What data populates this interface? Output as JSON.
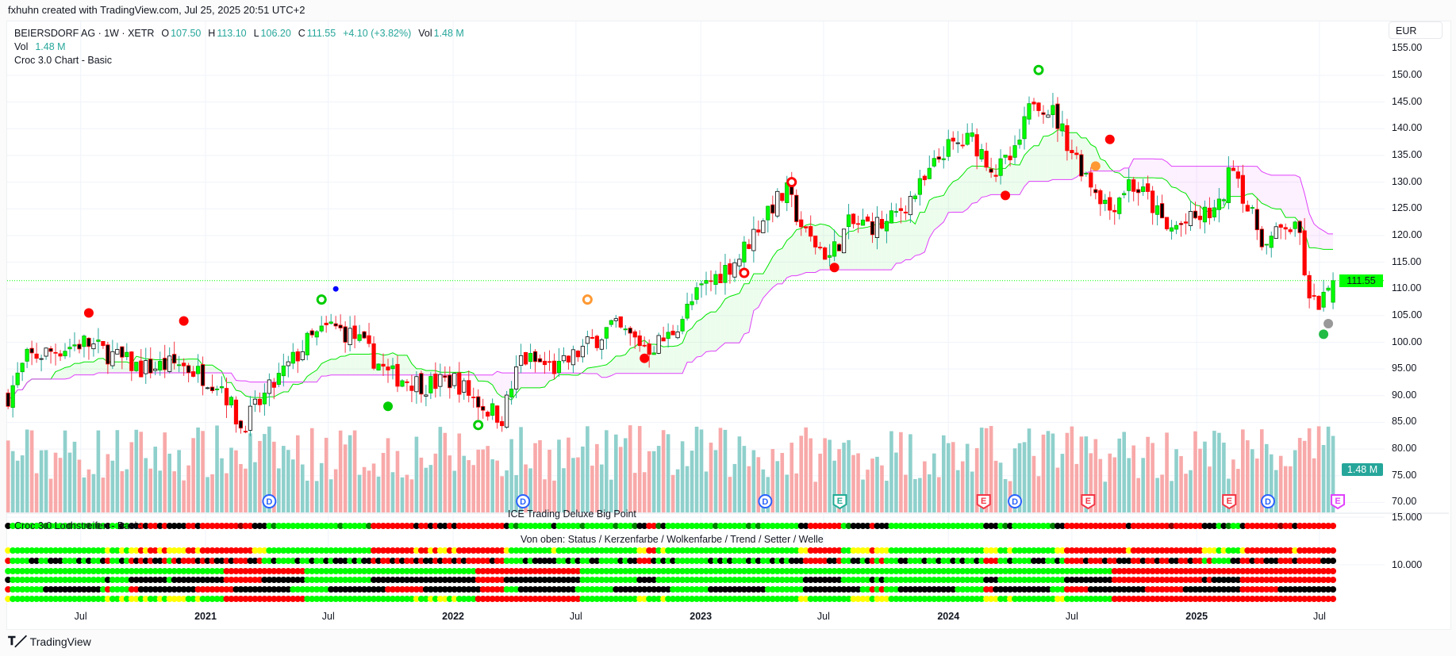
{
  "credit": "fxhuhn created with TradingView.com, Jul 25, 2025 20:51 UTC+2",
  "legend": {
    "symbol": "BEIERSDORF AG · 1W · XETR",
    "o_label": "O",
    "o": "107.50",
    "h_label": "H",
    "h": "113.10",
    "l_label": "L",
    "l": "106.20",
    "c_label": "C",
    "c": "111.55",
    "change": "+4.10 (+3.82%)",
    "vol_label": "Vol",
    "vol": "1.48 M",
    "vol_line_label": "Vol",
    "vol_line_value": "1.48 M",
    "indicator": "Croc 3.0 Chart - Basic"
  },
  "currency": "EUR",
  "last_price": "111.55",
  "last_volume": "1.48 M",
  "indicator_pane": {
    "label": "Croc 3.0 Lochstreifen - Basic",
    "title": "ICE Trading Deluxe Big Point",
    "subtitle": "Von oben: Status / Kerzenfarbe / Wolkenfarbe / Trend / Setter / Welle",
    "ticks": [
      "15.000",
      "10.000"
    ]
  },
  "footer": {
    "brand": "TradingView"
  },
  "colors": {
    "up": "#00ff00",
    "down": "#ff0000",
    "cloud_a": "#00e600",
    "cloud_b": "#e040fb",
    "vol_up": "#8fd0cc",
    "vol_down": "#f8a9a9",
    "wick_up": "#26a69a",
    "last": "#00ff00"
  },
  "chart_data": {
    "type": "candlestick",
    "title": "BEIERSDORF AG · 1W · XETR",
    "ylabel": "EUR",
    "ylim": [
      68,
      156
    ],
    "y_ticks": [
      "155.00",
      "150.00",
      "145.00",
      "140.00",
      "135.00",
      "130.00",
      "125.00",
      "120.00",
      "115.00",
      "110.00",
      "105.00",
      "100.00",
      "95.00",
      "90.00",
      "85.00",
      "80.00",
      "75.00",
      "70.00"
    ],
    "x_ticks": [
      {
        "label": "Jul",
        "date": "2020-07-01",
        "year": false
      },
      {
        "label": "2021",
        "date": "2021-01-01",
        "year": true
      },
      {
        "label": "Jul",
        "date": "2021-07-01",
        "year": false
      },
      {
        "label": "2022",
        "date": "2022-01-01",
        "year": true
      },
      {
        "label": "Jul",
        "date": "2022-07-01",
        "year": false
      },
      {
        "label": "2023",
        "date": "2023-01-01",
        "year": true
      },
      {
        "label": "Jul",
        "date": "2023-07-01",
        "year": false
      },
      {
        "label": "2024",
        "date": "2024-01-01",
        "year": true
      },
      {
        "label": "Jul",
        "date": "2024-07-01",
        "year": false
      },
      {
        "label": "2025",
        "date": "2025-01-01",
        "year": true
      },
      {
        "label": "Jul",
        "date": "2025-07-01",
        "year": false
      }
    ],
    "close_anchors": [
      [
        "2020-03-16",
        90
      ],
      [
        "2020-04-13",
        97
      ],
      [
        "2020-07-06",
        100
      ],
      [
        "2020-09-28",
        95
      ],
      [
        "2020-11-23",
        96
      ],
      [
        "2021-01-25",
        92
      ],
      [
        "2021-02-22",
        84
      ],
      [
        "2021-04-05",
        91
      ],
      [
        "2021-05-31",
        100
      ],
      [
        "2021-07-05",
        103
      ],
      [
        "2021-08-09",
        101
      ],
      [
        "2021-09-27",
        94
      ],
      [
        "2021-11-22",
        92
      ],
      [
        "2022-01-03",
        93
      ],
      [
        "2022-02-14",
        88
      ],
      [
        "2022-03-14",
        86
      ],
      [
        "2022-04-11",
        97
      ],
      [
        "2022-06-06",
        95
      ],
      [
        "2022-07-04",
        98
      ],
      [
        "2022-08-22",
        103
      ],
      [
        "2022-10-17",
        99
      ],
      [
        "2022-11-14",
        101
      ],
      [
        "2023-01-02",
        110
      ],
      [
        "2023-02-27",
        116
      ],
      [
        "2023-04-10",
        125
      ],
      [
        "2023-05-08",
        128
      ],
      [
        "2023-06-05",
        120
      ],
      [
        "2023-07-10",
        116
      ],
      [
        "2023-08-07",
        122
      ],
      [
        "2023-10-02",
        122
      ],
      [
        "2023-11-27",
        130
      ],
      [
        "2023-12-25",
        136
      ],
      [
        "2024-02-05",
        138
      ],
      [
        "2024-03-11",
        132
      ],
      [
        "2024-04-08",
        135
      ],
      [
        "2024-05-06",
        146
      ],
      [
        "2024-06-03",
        143
      ],
      [
        "2024-07-01",
        136
      ],
      [
        "2024-07-29",
        130
      ],
      [
        "2024-08-26",
        125
      ],
      [
        "2024-09-23",
        130
      ],
      [
        "2024-10-21",
        127
      ],
      [
        "2024-11-18",
        121
      ],
      [
        "2024-12-30",
        123
      ],
      [
        "2025-02-03",
        125
      ],
      [
        "2025-02-24",
        134
      ],
      [
        "2025-03-17",
        125
      ],
      [
        "2025-04-14",
        118
      ],
      [
        "2025-05-12",
        122
      ],
      [
        "2025-06-02",
        120
      ],
      [
        "2025-06-16",
        107
      ],
      [
        "2025-07-07",
        108
      ],
      [
        "2025-07-21",
        111.55
      ]
    ],
    "last_bar": {
      "open": 107.5,
      "high": 113.1,
      "low": 106.2,
      "close": 111.55,
      "volume": "1.48 M"
    },
    "events": [
      {
        "type": "D",
        "date": "2021-04-05"
      },
      {
        "type": "D",
        "date": "2022-04-14"
      },
      {
        "type": "D",
        "date": "2023-04-06"
      },
      {
        "type": "D",
        "date": "2024-04-08"
      },
      {
        "type": "D",
        "date": "2025-04-16"
      },
      {
        "type": "E",
        "date": "2023-07-25",
        "color": "#22ab94"
      },
      {
        "type": "E",
        "date": "2024-02-22",
        "color": "#f23645"
      },
      {
        "type": "E",
        "date": "2024-07-25",
        "color": "#f23645"
      },
      {
        "type": "E",
        "date": "2025-02-18",
        "color": "#f23645"
      },
      {
        "type": "E",
        "date": "2025-07-28",
        "color": "#e040fb"
      }
    ],
    "signals": [
      {
        "date": "2020-07-13",
        "price": 105.5,
        "color": "#ff0000"
      },
      {
        "date": "2020-11-30",
        "price": 104,
        "color": "#ff0000"
      },
      {
        "date": "2021-07-12",
        "price": 110,
        "color": "#0000ff",
        "small": true
      },
      {
        "date": "2021-06-21",
        "price": 108,
        "color": "#00cc00",
        "ring": true
      },
      {
        "date": "2021-09-27",
        "price": 88,
        "color": "#00cc00"
      },
      {
        "date": "2022-02-07",
        "price": 84.5,
        "color": "#00cc00",
        "ring": true
      },
      {
        "date": "2022-07-18",
        "price": 108,
        "color": "#ff9933",
        "ring": true
      },
      {
        "date": "2022-10-10",
        "price": 97,
        "color": "#ff0000"
      },
      {
        "date": "2023-03-06",
        "price": 113,
        "color": "#ff0000",
        "ring": true
      },
      {
        "date": "2023-05-15",
        "price": 130,
        "color": "#ff0000",
        "ring": true
      },
      {
        "date": "2023-07-17",
        "price": 114,
        "color": "#ff0000"
      },
      {
        "date": "2024-05-13",
        "price": 151,
        "color": "#00cc00",
        "ring": true
      },
      {
        "date": "2024-03-25",
        "price": 127.5,
        "color": "#ff0000"
      },
      {
        "date": "2024-08-26",
        "price": 138,
        "color": "#ff0000"
      },
      {
        "date": "2024-08-05",
        "price": 133,
        "color": "#ff9933"
      },
      {
        "date": "2025-07-07",
        "price": 101.5,
        "color": "#22bb44"
      },
      {
        "date": "2025-07-14",
        "price": 103.5,
        "color": "#999999"
      }
    ]
  }
}
